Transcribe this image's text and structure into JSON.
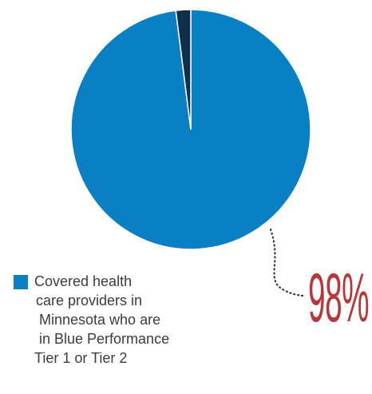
{
  "chart_data": {
    "type": "pie",
    "slices": [
      {
        "label": "Covered health care providers in Minnesota who are in Blue Performance Tier 1 or Tier 2",
        "value": 98,
        "color": "#0a80c4"
      },
      {
        "label": "",
        "value": 2,
        "color": "#0f2f4d"
      }
    ],
    "annotation": "98%"
  },
  "legend": {
    "color": "#0a80c4",
    "lines": [
      "Covered health",
      "care providers in",
      "Minnesota who are",
      "in Blue Performance",
      "Tier 1 or Tier 2"
    ]
  },
  "colors": {
    "annotation": "#b9373a",
    "leader": "#333333"
  }
}
